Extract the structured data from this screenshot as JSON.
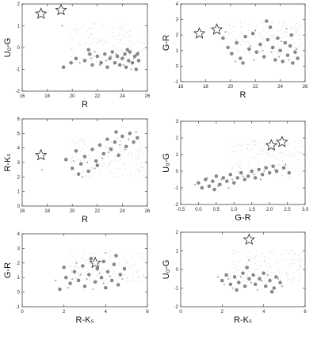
{
  "chart_data": [
    {
      "type": "scatter",
      "xlabel": "R",
      "ylabel": "U₀-G",
      "xlim": [
        16,
        26
      ],
      "ylim": [
        -2,
        2
      ],
      "xticks": [
        "16",
        "18",
        "20",
        "22",
        "24",
        "26"
      ],
      "yticks": [
        "-2",
        "-1",
        "0",
        "1",
        "2"
      ],
      "stars": [
        [
          17.5,
          1.55
        ],
        [
          19.1,
          1.72
        ]
      ],
      "symbols": [
        [
          19.3,
          -0.9
        ],
        [
          19.9,
          -0.7
        ],
        [
          20.3,
          -0.5
        ],
        [
          21.0,
          -0.6
        ],
        [
          21.4,
          -0.3
        ],
        [
          21.6,
          -0.8
        ],
        [
          22.0,
          -0.4
        ],
        [
          22.3,
          -0.7
        ],
        [
          22.6,
          -0.3
        ],
        [
          22.8,
          -0.9
        ],
        [
          23.0,
          -0.5
        ],
        [
          23.2,
          -0.2
        ],
        [
          23.4,
          -0.7
        ],
        [
          23.6,
          -0.4
        ],
        [
          23.8,
          -0.8
        ],
        [
          24.0,
          -0.5
        ],
        [
          24.2,
          -0.3
        ],
        [
          24.3,
          -0.9
        ],
        [
          24.5,
          -0.6
        ],
        [
          24.6,
          -0.2
        ],
        [
          24.8,
          -0.7
        ],
        [
          25.0,
          -0.4
        ],
        [
          25.1,
          -1.0
        ],
        [
          25.3,
          -0.6
        ],
        [
          21.3,
          -0.1
        ],
        [
          24.4,
          -0.1
        ],
        [
          25.2,
          -0.3
        ]
      ],
      "dots": [
        [
          21.5,
          -0.5
        ],
        [
          22.7,
          -0.6
        ],
        [
          23.5,
          -0.3
        ],
        [
          24.1,
          -0.8
        ],
        [
          24.9,
          -0.5
        ],
        [
          25.3,
          -0.2
        ],
        [
          22.2,
          -0.8
        ],
        [
          23.1,
          -0.4
        ],
        [
          20.6,
          -0.7
        ],
        [
          19.2,
          1.0
        ],
        [
          24.7,
          -1.0
        ],
        [
          21.8,
          -0.2
        ]
      ]
    },
    {
      "type": "scatter",
      "xlabel": "R",
      "ylabel": "G-R",
      "xlim": [
        16,
        26
      ],
      "ylim": [
        -1,
        4
      ],
      "xticks": [
        "16",
        "18",
        "20",
        "22",
        "24",
        "26"
      ],
      "yticks": [
        "-1",
        "0",
        "1",
        "2",
        "3",
        "4"
      ],
      "stars": [
        [
          17.5,
          2.1
        ],
        [
          18.9,
          2.35
        ]
      ],
      "symbols": [
        [
          19.4,
          1.8
        ],
        [
          19.8,
          1.2
        ],
        [
          20.1,
          0.8
        ],
        [
          20.5,
          1.5
        ],
        [
          20.8,
          0.5
        ],
        [
          21.2,
          1.9
        ],
        [
          21.5,
          1.1
        ],
        [
          21.8,
          2.1
        ],
        [
          22.1,
          0.9
        ],
        [
          22.4,
          1.4
        ],
        [
          22.7,
          0.6
        ],
        [
          23.0,
          1.7
        ],
        [
          23.2,
          2.5
        ],
        [
          23.4,
          1.2
        ],
        [
          23.6,
          0.4
        ],
        [
          23.8,
          1.8
        ],
        [
          24.0,
          1.0
        ],
        [
          24.2,
          0.3
        ],
        [
          24.4,
          1.5
        ],
        [
          24.6,
          0.7
        ],
        [
          24.8,
          1.3
        ],
        [
          25.0,
          0.2
        ],
        [
          25.2,
          0.9
        ],
        [
          25.4,
          0.5
        ],
        [
          21.0,
          0.2
        ],
        [
          22.9,
          2.9
        ],
        [
          24.9,
          2.0
        ]
      ],
      "dots": [
        [
          21.6,
          1.3
        ],
        [
          22.6,
          1.0
        ],
        [
          23.3,
          0.9
        ],
        [
          24.1,
          1.6
        ],
        [
          24.7,
          0.4
        ],
        [
          25.3,
          1.1
        ],
        [
          22.0,
          2.3
        ],
        [
          23.9,
          0.6
        ],
        [
          20.4,
          0.3
        ],
        [
          19.6,
          2.2
        ],
        [
          24.5,
          2.4
        ],
        [
          21.9,
          0.4
        ]
      ]
    },
    {
      "type": "scatter",
      "xlabel": "R",
      "ylabel": "R-Kₛ",
      "xlim": [
        16,
        26
      ],
      "ylim": [
        0,
        6
      ],
      "xticks": [
        "16",
        "18",
        "20",
        "22",
        "24",
        "26"
      ],
      "yticks": [
        "0",
        "1",
        "2",
        "3",
        "4",
        "5",
        "6"
      ],
      "stars": [
        [
          17.5,
          3.5
        ]
      ],
      "symbols": [
        [
          19.5,
          3.2
        ],
        [
          20.0,
          2.6
        ],
        [
          20.3,
          3.8
        ],
        [
          20.7,
          2.9
        ],
        [
          21.0,
          3.4
        ],
        [
          21.3,
          2.4
        ],
        [
          21.6,
          3.9
        ],
        [
          21.9,
          3.1
        ],
        [
          22.2,
          4.2
        ],
        [
          22.5,
          3.6
        ],
        [
          22.8,
          4.6
        ],
        [
          23.1,
          3.9
        ],
        [
          23.4,
          4.4
        ],
        [
          23.7,
          3.5
        ],
        [
          24.0,
          4.8
        ],
        [
          24.3,
          4.1
        ],
        [
          24.6,
          5.0
        ],
        [
          24.9,
          4.4
        ],
        [
          25.2,
          4.7
        ],
        [
          20.5,
          2.2
        ],
        [
          22.0,
          2.8
        ],
        [
          23.5,
          5.1
        ]
      ],
      "dots": [
        [
          21.2,
          3.0
        ],
        [
          22.4,
          3.3
        ],
        [
          23.0,
          4.0
        ],
        [
          23.8,
          4.2
        ],
        [
          24.5,
          4.6
        ],
        [
          25.1,
          5.1
        ],
        [
          21.8,
          2.6
        ],
        [
          22.9,
          3.7
        ],
        [
          20.1,
          3.1
        ],
        [
          17.6,
          2.5
        ],
        [
          24.2,
          3.9
        ],
        [
          20.8,
          2.0
        ]
      ]
    },
    {
      "type": "scatter",
      "xlabel": "G-R",
      "ylabel": "U₀-G",
      "xlim": [
        -0.5,
        3.0
      ],
      "ylim": [
        -2,
        3
      ],
      "xticks": [
        "-0.5",
        "0.0",
        "0.5",
        "1.0",
        "1.5",
        "2.0",
        "2.5",
        "3.0"
      ],
      "yticks": [
        "-2",
        "-1",
        "0",
        "1",
        "2",
        "3"
      ],
      "stars": [
        [
          2.05,
          1.55
        ],
        [
          2.35,
          1.75
        ]
      ],
      "symbols": [
        [
          0.0,
          -0.7
        ],
        [
          0.2,
          -0.5
        ],
        [
          0.3,
          -0.9
        ],
        [
          0.4,
          -0.6
        ],
        [
          0.5,
          -0.3
        ],
        [
          0.6,
          -0.8
        ],
        [
          0.7,
          -0.4
        ],
        [
          0.8,
          -0.6
        ],
        [
          0.9,
          -0.2
        ],
        [
          1.0,
          -0.7
        ],
        [
          1.1,
          -0.4
        ],
        [
          1.2,
          -0.1
        ],
        [
          1.3,
          -0.5
        ],
        [
          1.4,
          -0.3
        ],
        [
          1.5,
          0.0
        ],
        [
          1.6,
          -0.4
        ],
        [
          1.7,
          0.1
        ],
        [
          1.8,
          -0.2
        ],
        [
          1.9,
          0.2
        ],
        [
          2.0,
          -0.1
        ],
        [
          2.1,
          0.3
        ],
        [
          2.2,
          0.0
        ],
        [
          2.4,
          0.2
        ],
        [
          2.55,
          -0.1
        ],
        [
          0.1,
          -1.0
        ],
        [
          0.45,
          -1.1
        ]
      ],
      "dots": [
        [
          0.25,
          -0.4
        ],
        [
          0.65,
          -0.5
        ],
        [
          0.95,
          -0.5
        ],
        [
          1.25,
          -0.3
        ],
        [
          1.55,
          -0.2
        ],
        [
          1.85,
          0.0
        ],
        [
          2.15,
          0.1
        ],
        [
          0.55,
          -0.9
        ],
        [
          -0.1,
          -0.8
        ],
        [
          2.45,
          0.4
        ],
        [
          1.75,
          -0.5
        ],
        [
          0.85,
          -1.0
        ]
      ]
    },
    {
      "type": "scatter",
      "xlabel": "R-Kₛ",
      "ylabel": "G-R",
      "xlim": [
        0,
        6
      ],
      "ylim": [
        -1,
        4
      ],
      "xticks": [
        "0",
        "2",
        "4",
        "6"
      ],
      "yticks": [
        "-1",
        "0",
        "1",
        "2",
        "3",
        "4"
      ],
      "stars": [
        [
          3.5,
          2.0
        ]
      ],
      "symbols": [
        [
          1.8,
          0.2
        ],
        [
          2.1,
          1.0
        ],
        [
          2.3,
          0.6
        ],
        [
          2.5,
          1.4
        ],
        [
          2.7,
          0.8
        ],
        [
          2.9,
          1.8
        ],
        [
          3.0,
          0.4
        ],
        [
          3.2,
          1.2
        ],
        [
          3.3,
          2.3
        ],
        [
          3.5,
          0.7
        ],
        [
          3.6,
          1.6
        ],
        [
          3.8,
          1.0
        ],
        [
          3.9,
          2.1
        ],
        [
          4.0,
          0.3
        ],
        [
          4.1,
          1.4
        ],
        [
          4.3,
          0.8
        ],
        [
          4.4,
          1.9
        ],
        [
          4.6,
          0.5
        ],
        [
          4.7,
          1.2
        ],
        [
          4.9,
          1.6
        ],
        [
          2.0,
          1.7
        ],
        [
          4.5,
          2.5
        ]
      ],
      "dots": [
        [
          2.4,
          0.9
        ],
        [
          2.8,
          1.2
        ],
        [
          3.1,
          0.9
        ],
        [
          3.7,
          1.3
        ],
        [
          4.2,
          1.1
        ],
        [
          4.8,
          0.9
        ],
        [
          2.6,
          2.0
        ],
        [
          3.4,
          0.2
        ],
        [
          1.6,
          0.8
        ],
        [
          4.0,
          2.7
        ],
        [
          3.9,
          0.6
        ],
        [
          2.2,
          0.3
        ]
      ]
    },
    {
      "type": "scatter",
      "xlabel": "R-Kₛ",
      "ylabel": "U₀-G",
      "xlim": [
        0,
        6
      ],
      "ylim": [
        -2,
        2
      ],
      "xticks": [
        "0",
        "2",
        "4",
        "6"
      ],
      "yticks": [
        "-2",
        "-1",
        "0",
        "1",
        "2"
      ],
      "stars": [
        [
          3.3,
          1.6
        ]
      ],
      "symbols": [
        [
          2.0,
          -0.6
        ],
        [
          2.2,
          -0.3
        ],
        [
          2.4,
          -0.8
        ],
        [
          2.6,
          -0.4
        ],
        [
          2.8,
          -0.7
        ],
        [
          3.0,
          -0.2
        ],
        [
          3.1,
          -0.9
        ],
        [
          3.3,
          -0.5
        ],
        [
          3.5,
          -0.3
        ],
        [
          3.6,
          -0.8
        ],
        [
          3.8,
          -0.5
        ],
        [
          4.0,
          -0.2
        ],
        [
          4.1,
          -0.9
        ],
        [
          4.3,
          -0.6
        ],
        [
          4.5,
          -1.0
        ],
        [
          4.6,
          -0.4
        ],
        [
          4.8,
          -0.7
        ],
        [
          3.2,
          0.1
        ],
        [
          4.4,
          -1.2
        ],
        [
          2.7,
          -1.1
        ]
      ],
      "dots": [
        [
          2.3,
          -0.5
        ],
        [
          2.9,
          -0.4
        ],
        [
          3.4,
          -0.7
        ],
        [
          3.9,
          -0.6
        ],
        [
          4.2,
          -0.3
        ],
        [
          4.7,
          -0.5
        ],
        [
          2.5,
          -1.0
        ],
        [
          3.7,
          -1.1
        ],
        [
          1.8,
          -0.4
        ],
        [
          3.3,
          0.5
        ],
        [
          4.9,
          -0.9
        ],
        [
          2.1,
          -0.8
        ]
      ]
    }
  ]
}
